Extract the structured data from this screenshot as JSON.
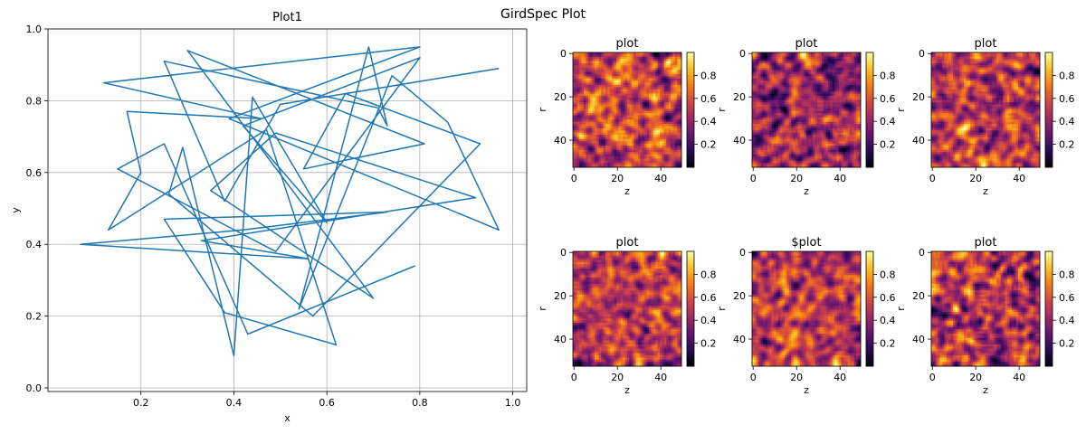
{
  "figure": {
    "suptitle": "GirdSpec Plot"
  },
  "colors": {
    "line": "#1f77b4",
    "grid": "#b0b0b0",
    "axis": "#000000"
  },
  "chart_data": [
    {
      "type": "line",
      "title": "Plot1",
      "xlabel": "x",
      "ylabel": "y",
      "xlim": [
        0.0,
        1.03
      ],
      "ylim": [
        -0.01,
        1.0
      ],
      "xticks": [
        "0.2",
        "0.4",
        "0.6",
        "0.8",
        "1.0"
      ],
      "xtick_values": [
        0.2,
        0.4,
        0.6,
        0.8,
        1.0
      ],
      "yticks": [
        "0.0",
        "0.2",
        "0.4",
        "0.6",
        "0.8",
        "1.0"
      ],
      "ytick_values": [
        0.0,
        0.2,
        0.4,
        0.6,
        0.8,
        1.0
      ],
      "grid": true,
      "series": [
        {
          "x": [
            0.97,
            0.5,
            0.38,
            0.25,
            0.71,
            0.73,
            0.69,
            0.54,
            0.74,
            0.86,
            0.97,
            0.39,
            0.8,
            0.12,
            0.46,
            0.17,
            0.2,
            0.13,
            0.47,
            0.62,
            0.38,
            0.25,
            0.73,
            0.42,
            0.07,
            0.56,
            0.33,
            0.92,
            0.49,
            0.35,
            0.7,
            0.3,
            0.81,
            0.55,
            0.64,
            0.93,
            0.57,
            0.26,
            0.29,
            0.4,
            0.44,
            0.6,
            0.42,
            0.8,
            0.49,
            0.15,
            0.25,
            0.43,
            0.79
          ],
          "y": [
            0.89,
            0.79,
            0.52,
            0.91,
            0.78,
            0.73,
            0.95,
            0.22,
            0.87,
            0.74,
            0.44,
            0.75,
            0.95,
            0.85,
            0.75,
            0.77,
            0.6,
            0.44,
            0.72,
            0.12,
            0.21,
            0.47,
            0.49,
            0.44,
            0.4,
            0.36,
            0.41,
            0.53,
            0.71,
            0.55,
            0.25,
            0.94,
            0.68,
            0.61,
            0.82,
            0.68,
            0.2,
            0.54,
            0.67,
            0.09,
            0.81,
            0.46,
            0.73,
            0.92,
            0.38,
            0.61,
            0.68,
            0.15,
            0.34
          ]
        }
      ]
    },
    {
      "type": "heatmap",
      "title": "plot",
      "xlabel": "z",
      "ylabel": "r",
      "xticks": [
        "0",
        "20",
        "40"
      ],
      "yticks": [
        "0",
        "20",
        "40"
      ],
      "colorbar_ticks": [
        "0.2",
        "0.4",
        "0.6",
        "0.8"
      ],
      "colormap": "inferno",
      "grid_size": [
        53,
        50
      ],
      "value_range": [
        0,
        1
      ]
    },
    {
      "type": "heatmap",
      "title": "plot",
      "xlabel": "z",
      "ylabel": "r",
      "xticks": [
        "0",
        "20",
        "40"
      ],
      "yticks": [
        "0",
        "20",
        "40"
      ],
      "colorbar_ticks": [
        "0.2",
        "0.4",
        "0.6",
        "0.8"
      ],
      "colormap": "inferno",
      "grid_size": [
        53,
        50
      ],
      "value_range": [
        0,
        1
      ]
    },
    {
      "type": "heatmap",
      "title": "plot",
      "xlabel": "z",
      "ylabel": "r",
      "xticks": [
        "0",
        "20",
        "40"
      ],
      "yticks": [
        "0",
        "20",
        "40"
      ],
      "colorbar_ticks": [
        "0.2",
        "0.4",
        "0.6",
        "0.8"
      ],
      "colormap": "inferno",
      "grid_size": [
        53,
        50
      ],
      "value_range": [
        0,
        1
      ]
    },
    {
      "type": "heatmap",
      "title": "plot",
      "xlabel": "z",
      "ylabel": "r",
      "xticks": [
        "0",
        "20",
        "40"
      ],
      "yticks": [
        "0",
        "20",
        "40"
      ],
      "colorbar_ticks": [
        "0.2",
        "0.4",
        "0.6",
        "0.8"
      ],
      "colormap": "inferno",
      "grid_size": [
        53,
        50
      ],
      "value_range": [
        0,
        1
      ]
    },
    {
      "type": "heatmap",
      "title": "$plot",
      "xlabel": "z",
      "ylabel": "r",
      "xticks": [
        "0",
        "20",
        "40"
      ],
      "yticks": [
        "0",
        "20",
        "40"
      ],
      "colorbar_ticks": [
        "0.2",
        "0.4",
        "0.6",
        "0.8"
      ],
      "colormap": "inferno",
      "grid_size": [
        53,
        50
      ],
      "value_range": [
        0,
        1
      ]
    },
    {
      "type": "heatmap",
      "title": "plot",
      "xlabel": "z",
      "ylabel": "r",
      "xticks": [
        "0",
        "20",
        "40"
      ],
      "yticks": [
        "0",
        "20",
        "40"
      ],
      "colorbar_ticks": [
        "0.2",
        "0.4",
        "0.6",
        "0.8"
      ],
      "colormap": "inferno",
      "grid_size": [
        53,
        50
      ],
      "value_range": [
        0,
        1
      ]
    }
  ]
}
